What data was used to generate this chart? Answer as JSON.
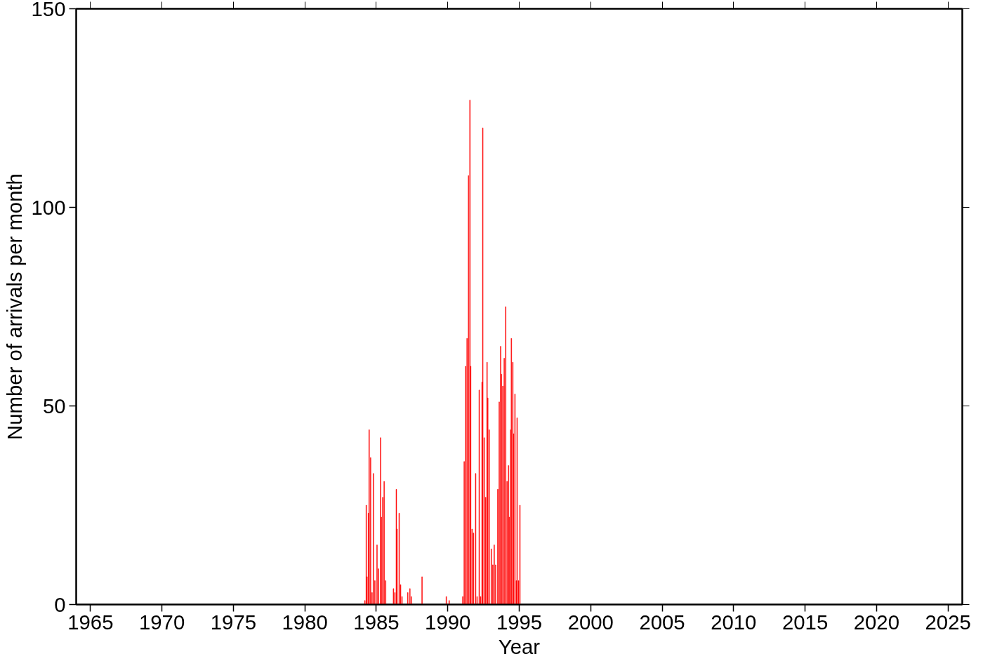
{
  "chart_data": {
    "type": "bar",
    "xlabel": "Year",
    "ylabel": "Number of arrivals per month",
    "x": [
      1984.2,
      1984.3,
      1984.35,
      1984.45,
      1984.5,
      1984.6,
      1984.7,
      1984.8,
      1984.9,
      1985.05,
      1985.15,
      1985.3,
      1985.35,
      1985.45,
      1985.55,
      1985.65,
      1986.2,
      1986.3,
      1986.4,
      1986.45,
      1986.6,
      1986.7,
      1986.8,
      1987.2,
      1987.35,
      1987.45,
      1988.2,
      1989.9,
      1990.1,
      1991.05,
      1991.15,
      1991.25,
      1991.35,
      1991.45,
      1991.55,
      1991.6,
      1991.7,
      1991.8,
      1991.95,
      1992.05,
      1992.2,
      1992.3,
      1992.4,
      1992.45,
      1992.55,
      1992.65,
      1992.75,
      1992.8,
      1992.9,
      1993.05,
      1993.15,
      1993.25,
      1993.35,
      1993.5,
      1993.6,
      1993.7,
      1993.75,
      1993.85,
      1993.95,
      1994.05,
      1994.15,
      1994.25,
      1994.3,
      1994.4,
      1994.45,
      1994.55,
      1994.6,
      1994.7,
      1994.8,
      1994.85,
      1994.95,
      1995.05
    ],
    "series": [
      {
        "color": "#ff0000",
        "values": [
          1,
          25,
          7,
          23,
          44,
          37,
          3,
          33,
          6,
          15,
          9,
          42,
          22,
          27,
          31,
          6,
          4,
          3,
          29,
          19,
          23,
          5,
          2,
          3,
          4,
          2,
          7,
          2,
          1,
          2,
          36,
          60,
          67,
          108,
          127,
          60,
          19,
          18,
          33,
          2,
          54,
          2,
          56,
          120,
          42,
          27,
          61,
          52,
          44,
          14,
          10,
          15,
          10,
          29,
          51,
          65,
          58,
          55,
          62,
          75,
          31,
          35,
          22,
          44,
          67,
          61,
          43,
          53,
          6,
          47,
          6,
          25
        ]
      }
    ],
    "xlim": [
      1964,
      2026
    ],
    "xticks": [
      1965,
      1970,
      1975,
      1980,
      1985,
      1990,
      1995,
      2000,
      2005,
      2010,
      2015,
      2020,
      2025
    ],
    "ylim": [
      0,
      150
    ],
    "yticks": [
      0,
      50,
      100,
      150
    ],
    "grid": false
  }
}
